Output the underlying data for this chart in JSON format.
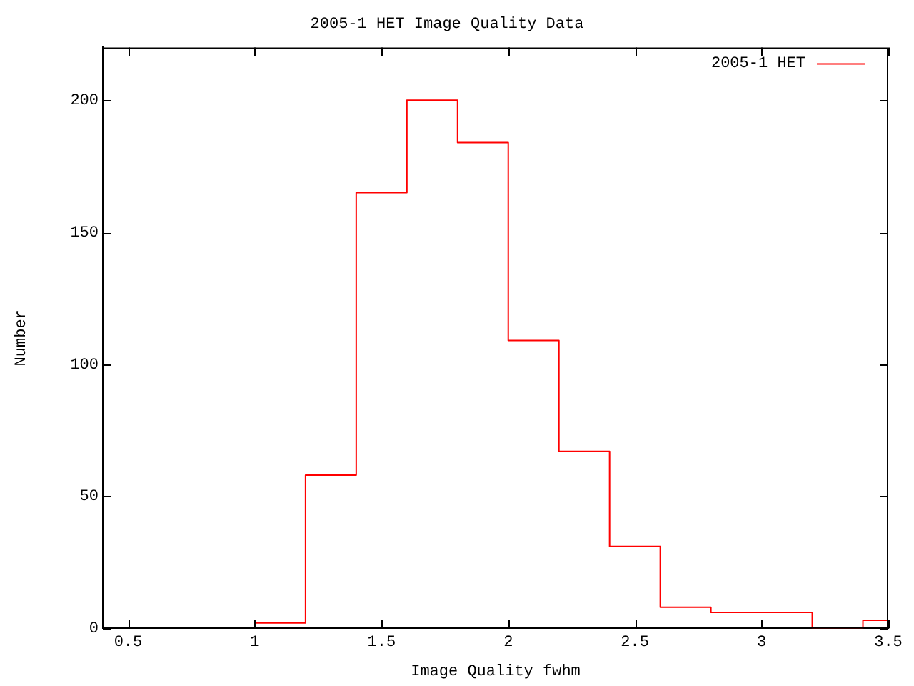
{
  "chart_data": {
    "type": "histogram",
    "title": "2005-1 HET Image Quality Data",
    "xlabel": "Image Quality fwhm",
    "ylabel": "Number",
    "bins": [
      1.0,
      1.2,
      1.4,
      1.6,
      1.8,
      2.0,
      2.2,
      2.4,
      2.6,
      2.8,
      3.0,
      3.2,
      3.4,
      3.5
    ],
    "series": [
      {
        "name": "2005-1 HET",
        "color": "#ff0000",
        "values": [
          2,
          58,
          165,
          200,
          184,
          109,
          67,
          31,
          8,
          6,
          6,
          0,
          3
        ]
      }
    ],
    "xlim": [
      0.4,
      3.5
    ],
    "xticks": [
      0.5,
      1,
      1.5,
      2,
      2.5,
      3,
      3.5
    ],
    "ylim": [
      0,
      220
    ],
    "yticks": [
      0,
      50,
      100,
      150,
      200
    ],
    "grid": false,
    "legend": "top right"
  }
}
